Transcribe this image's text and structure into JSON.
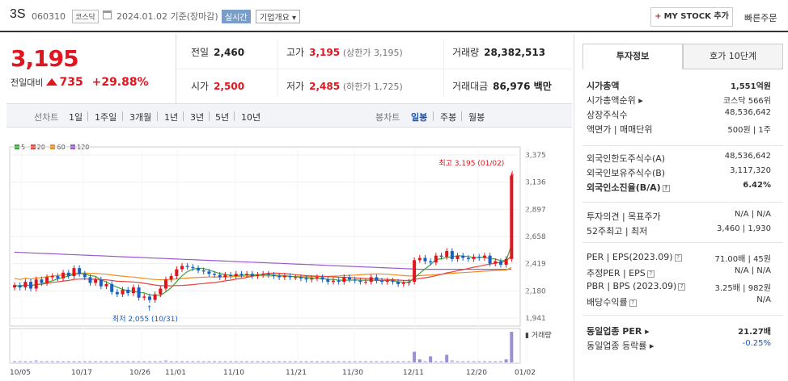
{
  "header": {
    "stock_name": "3S",
    "stock_code": "060310",
    "market": "코스닥",
    "date": "2024.01.02 기준(장마감)",
    "realtime": "실시간",
    "overview": "기업개요 ▾",
    "mystock": "MY STOCK 추가",
    "quick_order": "빠른주문"
  },
  "price": {
    "current": "3,195",
    "change_label": "전일대비",
    "change": "735",
    "change_pct": "+29.88%"
  },
  "quotes": {
    "prev_label": "전일",
    "prev": "2,460",
    "high_label": "고가",
    "high": "3,195",
    "high_sub": "(상한가 3,195)",
    "volume_label": "거래량",
    "volume": "28,382,513",
    "open_label": "시가",
    "open": "2,500",
    "low_label": "저가",
    "low": "2,485",
    "low_sub": "(하한가 1,725)",
    "amount_label": "거래대금",
    "amount": "86,976 백만"
  },
  "periods": {
    "label": "선차트",
    "items": [
      "1일",
      "1주일",
      "3개월",
      "1년",
      "3년",
      "5년",
      "10년"
    ],
    "candle_label": "봉차트",
    "candle_items": [
      "일봉",
      "주봉",
      "월봉"
    ],
    "active_candle": "일봉"
  },
  "chart_data": {
    "type": "candlestick",
    "ma_legend": [
      "5",
      "20",
      "60",
      "120"
    ],
    "ma_colors": [
      "#3da63a",
      "#e8433c",
      "#f08c1e",
      "#9b59c9"
    ],
    "y_ticks": [
      "3,375",
      "3,136",
      "2,897",
      "2,658",
      "2,419",
      "2,180",
      "1,941"
    ],
    "ylim": [
      1941,
      3375
    ],
    "x_ticks": [
      "10/05",
      "10/17",
      "10/26",
      "11/01",
      "11/10",
      "11/21",
      "11/30",
      "12/11",
      "12/20",
      "01/02"
    ],
    "high_annotation": "최고 3,195 (01/02)",
    "low_annotation": "최저 2,055 (10/31)",
    "volume_label": "거래량",
    "closes": [
      2230,
      2210,
      2260,
      2200,
      2280,
      2250,
      2300,
      2310,
      2290,
      2340,
      2310,
      2380,
      2330,
      2300,
      2250,
      2280,
      2220,
      2240,
      2170,
      2150,
      2190,
      2160,
      2210,
      2120,
      2130,
      2100,
      2150,
      2200,
      2280,
      2310,
      2370,
      2400,
      2390,
      2380,
      2360,
      2350,
      2330,
      2320,
      2300,
      2320,
      2310,
      2330,
      2320,
      2330,
      2310,
      2320,
      2330,
      2320,
      2310,
      2300,
      2310,
      2300,
      2300,
      2290,
      2280,
      2290,
      2300,
      2280,
      2260,
      2270,
      2260,
      2300,
      2280,
      2270,
      2260,
      2260,
      2300,
      2270,
      2260,
      2270,
      2260,
      2240,
      2250,
      2260,
      2450,
      2470,
      2440,
      2430,
      2490,
      2480,
      2530,
      2460,
      2490,
      2470,
      2460,
      2480,
      2470,
      2490,
      2420,
      2440,
      2410,
      2460,
      3195
    ],
    "volumes": [
      2,
      2,
      2,
      2,
      3,
      2,
      2,
      2,
      2,
      2,
      2,
      2,
      2,
      2,
      2,
      2,
      2,
      2,
      2,
      2,
      2,
      2,
      2,
      2,
      2,
      2,
      2,
      2,
      3,
      2,
      2,
      2,
      2,
      2,
      2,
      2,
      2,
      2,
      2,
      2,
      2,
      2,
      2,
      2,
      2,
      2,
      2,
      2,
      2,
      2,
      2,
      2,
      2,
      2,
      2,
      2,
      2,
      2,
      2,
      2,
      2,
      2,
      2,
      2,
      2,
      2,
      2,
      2,
      2,
      2,
      2,
      2,
      2,
      2,
      14,
      4,
      2,
      8,
      2,
      2,
      10,
      3,
      2,
      2,
      2,
      2,
      2,
      2,
      2,
      2,
      2,
      4,
      40
    ]
  },
  "right": {
    "tab_invest": "투자정보",
    "tab_ask": "호가 10단계",
    "rows1": [
      {
        "label": "시가총액",
        "value": "1,551억원",
        "bold": true
      },
      {
        "label": "시가총액순위 ▸",
        "value": "코스닥 566위"
      },
      {
        "label": "상장주식수",
        "value": "48,536,642"
      },
      {
        "label": "액면가 | 매매단위",
        "value": "500원 | 1주"
      }
    ],
    "rows2": [
      {
        "label": "외국인한도주식수(A)",
        "value": "48,536,642"
      },
      {
        "label": "외국인보유주식수(B)",
        "value": "3,117,320"
      },
      {
        "label": "외국인소진율(B/A)",
        "value": "6.42%",
        "bold": true,
        "q": true
      }
    ],
    "rows3": [
      {
        "label": "투자의견 | 목표주가",
        "value": "N/A | N/A"
      },
      {
        "label": "52주최고 | 최저",
        "value": "3,460 | 1,930"
      }
    ],
    "rows4": [
      {
        "label": "PER | EPS(2023.09)",
        "value": "71.00배 | 45원",
        "q": true
      },
      {
        "label": "추정PER | EPS",
        "value": "N/A | N/A",
        "q": true
      },
      {
        "label": "PBR | BPS (2023.09)",
        "value": "3.25배 | 982원",
        "q": true
      },
      {
        "label": "배당수익률",
        "value": "N/A",
        "q": true
      }
    ],
    "rows5": [
      {
        "label": "동일업종 PER ▸",
        "value": "21.27배",
        "bold": true
      },
      {
        "label": "동일업종 등락률 ▸",
        "value": "-0.25%",
        "blue": true
      }
    ]
  }
}
